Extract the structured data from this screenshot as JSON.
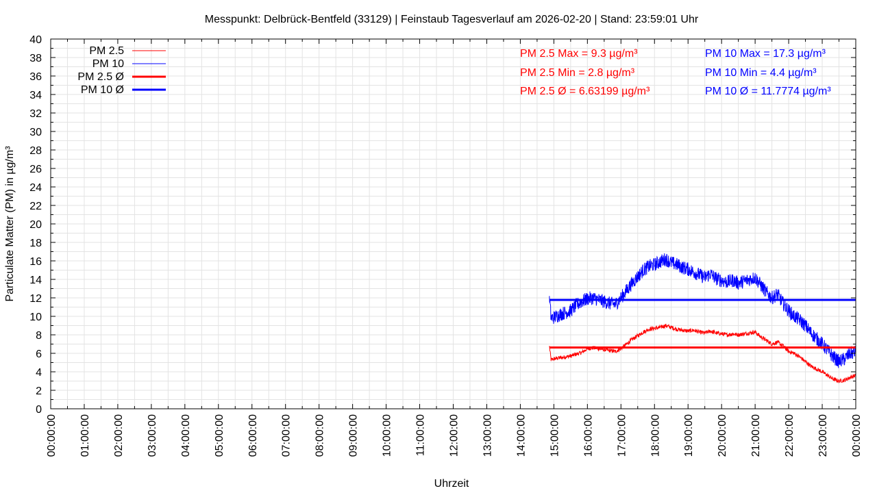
{
  "chart_data": {
    "type": "line",
    "title": "Messpunkt: Delbrück-Bentfeld (33129) | Feinstaub Tagesverlauf am 2026-02-20 | Stand: 23:59:01 Uhr",
    "xlabel": "Uhrzeit",
    "ylabel": "Particulate Matter (PM) in µg/m³",
    "xlim": [
      "00:00:00",
      "24:00:00"
    ],
    "ylim": [
      0,
      40
    ],
    "y_ticks": [
      0,
      2,
      4,
      6,
      8,
      10,
      12,
      14,
      16,
      18,
      20,
      22,
      24,
      26,
      28,
      30,
      32,
      34,
      36,
      38,
      40
    ],
    "x_tick_labels": [
      "00:00:00",
      "01:00:00",
      "02:00:00",
      "03:00:00",
      "04:00:00",
      "05:00:00",
      "06:00:00",
      "07:00:00",
      "08:00:00",
      "09:00:00",
      "10:00:00",
      "11:00:00",
      "12:00:00",
      "13:00:00",
      "14:00:00",
      "15:00:00",
      "16:00:00",
      "17:00:00",
      "18:00:00",
      "19:00:00",
      "20:00:00",
      "21:00:00",
      "22:00:00",
      "23:00:00",
      "00:00:00"
    ],
    "grid": true,
    "legend_position": "top-left",
    "legend": [
      {
        "label": "PM 2.5",
        "color": "#ff0000",
        "style": "thin"
      },
      {
        "label": "PM 10",
        "color": "#0000ff",
        "style": "thin"
      },
      {
        "label": "PM 2.5 Ø",
        "color": "#ff0000",
        "style": "thick"
      },
      {
        "label": "PM 10 Ø",
        "color": "#0000ff",
        "style": "thick"
      }
    ],
    "stats_pm25": [
      "PM 2.5 Max = 9.3 µg/m³",
      "PM 2.5 Min = 2.8 µg/m³",
      "PM 2.5 Ø = 6.63199 µg/m³"
    ],
    "stats_pm10": [
      "PM 10 Max = 17.3 µg/m³",
      "PM 10 Min = 4.4 µg/m³",
      "PM 10 Ø = 11.7774 µg/m³"
    ],
    "average_lines": {
      "pm25": {
        "value": 6.63199,
        "from": "14:52:00",
        "to": "24:00:00"
      },
      "pm10": {
        "value": 11.7774,
        "from": "14:52:00",
        "to": "24:00:00"
      }
    },
    "series": [
      {
        "name": "PM 2.5",
        "color": "#ff0000",
        "x": [
          "14:52",
          "14:55",
          "15:00",
          "15:10",
          "15:20",
          "15:30",
          "15:40",
          "15:50",
          "16:00",
          "16:10",
          "16:20",
          "16:30",
          "16:40",
          "16:50",
          "17:00",
          "17:10",
          "17:20",
          "17:30",
          "17:40",
          "17:50",
          "18:00",
          "18:10",
          "18:20",
          "18:30",
          "18:40",
          "18:50",
          "19:00",
          "19:10",
          "19:20",
          "19:30",
          "19:40",
          "19:50",
          "20:00",
          "20:10",
          "20:20",
          "20:30",
          "20:40",
          "20:50",
          "21:00",
          "21:10",
          "21:20",
          "21:30",
          "21:40",
          "21:50",
          "22:00",
          "22:10",
          "22:20",
          "22:30",
          "22:40",
          "22:50",
          "23:00",
          "23:10",
          "23:20",
          "23:30",
          "23:40",
          "23:50",
          "23:59"
        ],
        "values": [
          6.8,
          5.3,
          5.4,
          5.5,
          5.6,
          5.7,
          5.9,
          6.1,
          6.5,
          6.6,
          6.5,
          6.4,
          6.3,
          6.2,
          6.5,
          7.0,
          7.5,
          7.9,
          8.3,
          8.6,
          8.7,
          8.8,
          9.0,
          8.8,
          8.6,
          8.5,
          8.4,
          8.5,
          8.3,
          8.2,
          8.4,
          8.2,
          8.1,
          8.0,
          8.1,
          8.0,
          8.1,
          8.2,
          8.3,
          7.8,
          7.4,
          7.0,
          7.2,
          6.8,
          6.2,
          6.0,
          5.6,
          5.1,
          4.6,
          4.3,
          4.0,
          3.6,
          3.2,
          3.0,
          3.1,
          3.4,
          3.6
        ]
      },
      {
        "name": "PM 10",
        "color": "#0000ff",
        "x": [
          "14:52",
          "14:55",
          "15:00",
          "15:10",
          "15:20",
          "15:30",
          "15:40",
          "15:50",
          "16:00",
          "16:10",
          "16:20",
          "16:30",
          "16:40",
          "16:50",
          "17:00",
          "17:10",
          "17:20",
          "17:30",
          "17:40",
          "17:50",
          "18:00",
          "18:10",
          "18:20",
          "18:30",
          "18:40",
          "18:50",
          "19:00",
          "19:10",
          "19:20",
          "19:30",
          "19:40",
          "19:50",
          "20:00",
          "20:10",
          "20:20",
          "20:30",
          "20:40",
          "20:50",
          "21:00",
          "21:10",
          "21:20",
          "21:30",
          "21:40",
          "21:50",
          "22:00",
          "22:10",
          "22:20",
          "22:30",
          "22:40",
          "22:50",
          "23:00",
          "23:10",
          "23:20",
          "23:30",
          "23:40",
          "23:50",
          "23:59"
        ],
        "values": [
          12.2,
          9.8,
          9.9,
          10.2,
          10.4,
          10.6,
          11.2,
          11.6,
          11.9,
          12.0,
          11.8,
          11.6,
          11.4,
          11.3,
          12.0,
          12.8,
          13.6,
          14.3,
          15.0,
          15.4,
          15.6,
          15.9,
          16.2,
          15.8,
          15.6,
          15.3,
          15.1,
          14.8,
          14.5,
          14.2,
          14.6,
          14.1,
          13.9,
          13.7,
          13.9,
          13.6,
          13.8,
          14.0,
          14.2,
          13.4,
          12.6,
          12.0,
          12.4,
          11.4,
          10.6,
          10.0,
          9.6,
          9.0,
          8.2,
          7.6,
          7.0,
          6.3,
          5.6,
          5.1,
          5.4,
          6.0,
          6.1
        ]
      }
    ]
  }
}
